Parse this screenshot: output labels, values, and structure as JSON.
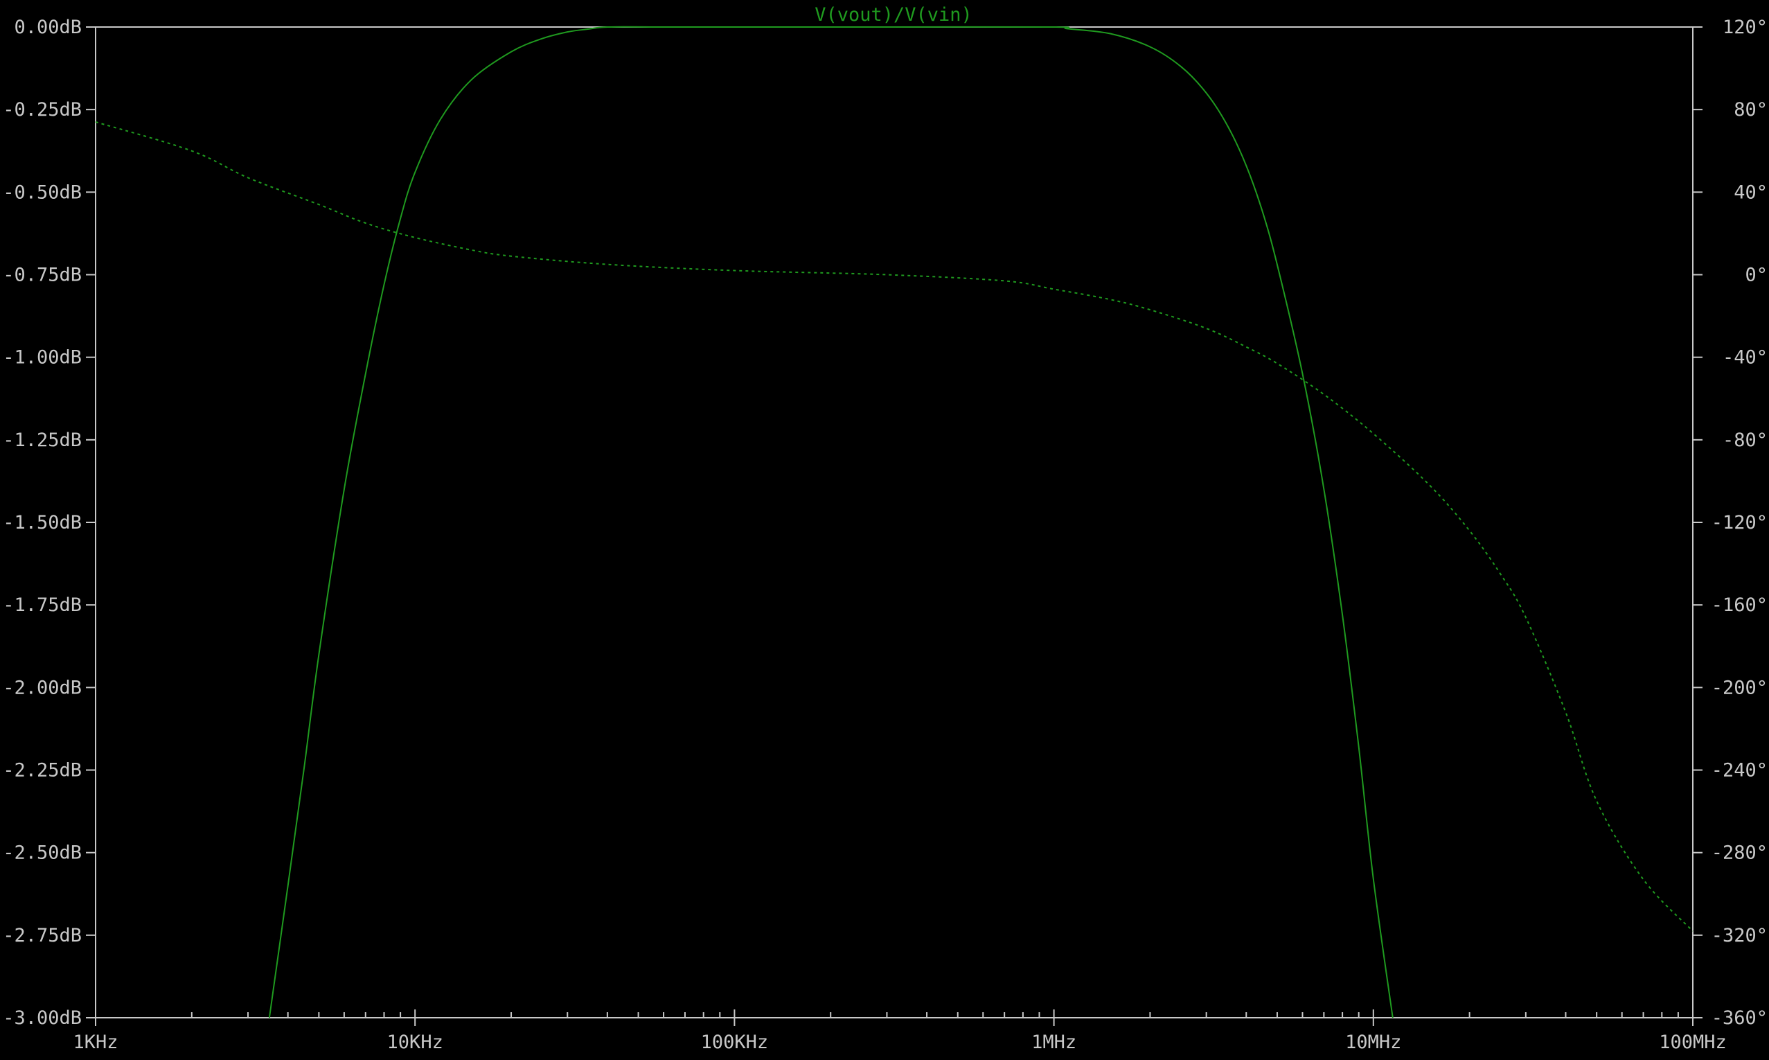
{
  "chart_data": {
    "type": "line",
    "title": "V(vout)/V(vin)",
    "x_scale": "log",
    "xlim": [
      1000,
      100000000
    ],
    "x_ticks": [
      {
        "value": 1000,
        "label": "1KHz"
      },
      {
        "value": 10000,
        "label": "10KHz"
      },
      {
        "value": 100000,
        "label": "100KHz"
      },
      {
        "value": 1000000,
        "label": "1MHz"
      },
      {
        "value": 10000000,
        "label": "10MHz"
      },
      {
        "value": 100000000,
        "label": "100MHz"
      }
    ],
    "y_left": {
      "unit": "dB",
      "lim": [
        -3.0,
        0.0
      ],
      "ticks": [
        {
          "value": 0.0,
          "label": "0.00dB"
        },
        {
          "value": -0.25,
          "label": "-0.25dB"
        },
        {
          "value": -0.5,
          "label": "-0.50dB"
        },
        {
          "value": -0.75,
          "label": "-0.75dB"
        },
        {
          "value": -1.0,
          "label": "-1.00dB"
        },
        {
          "value": -1.25,
          "label": "-1.25dB"
        },
        {
          "value": -1.5,
          "label": "-1.50dB"
        },
        {
          "value": -1.75,
          "label": "-1.75dB"
        },
        {
          "value": -2.0,
          "label": "-2.00dB"
        },
        {
          "value": -2.25,
          "label": "-2.25dB"
        },
        {
          "value": -2.5,
          "label": "-2.50dB"
        },
        {
          "value": -2.75,
          "label": "-2.75dB"
        },
        {
          "value": -3.0,
          "label": "-3.00dB"
        }
      ]
    },
    "y_right": {
      "unit": "°",
      "lim": [
        -360,
        120
      ],
      "ticks": [
        {
          "value": 120,
          "label": "120°"
        },
        {
          "value": 80,
          "label": "80°"
        },
        {
          "value": 40,
          "label": "40°"
        },
        {
          "value": 0,
          "label": "0°"
        },
        {
          "value": -40,
          "label": "-40°"
        },
        {
          "value": -80,
          "label": "-80°"
        },
        {
          "value": -120,
          "label": "-120°"
        },
        {
          "value": -160,
          "label": "-160°"
        },
        {
          "value": -200,
          "label": "-200°"
        },
        {
          "value": -240,
          "label": "-240°"
        },
        {
          "value": -280,
          "label": "-280°"
        },
        {
          "value": -320,
          "label": "-320°"
        },
        {
          "value": -360,
          "label": "-360°"
        }
      ]
    },
    "grid": false,
    "colors": {
      "trace": "#1f9a1f",
      "axis": "#c8c8c8",
      "background": "#000000"
    },
    "series": [
      {
        "axis": "left",
        "line_style": "solid",
        "x": [
          3500,
          4000,
          4500,
          5000,
          6000,
          7000,
          8000,
          9000,
          10000,
          12000,
          15000,
          20000,
          25000,
          30000,
          35000,
          40000,
          60000,
          100000,
          300000,
          1000000,
          1100000,
          1500000,
          2000000,
          2500000,
          3000000,
          3500000,
          4000000,
          4500000,
          5000000,
          6000000,
          7000000,
          8000000,
          9000000,
          10000000,
          11500000
        ],
        "y": [
          -3.0,
          -2.6,
          -2.24,
          -1.9,
          -1.4,
          -1.05,
          -0.78,
          -0.58,
          -0.44,
          -0.28,
          -0.16,
          -0.075,
          -0.035,
          -0.015,
          -0.006,
          0.0,
          0.0,
          0.0,
          0.0,
          0.0,
          -0.005,
          -0.02,
          -0.06,
          -0.12,
          -0.2,
          -0.3,
          -0.42,
          -0.56,
          -0.72,
          -1.05,
          -1.4,
          -1.78,
          -2.18,
          -2.58,
          -3.0
        ]
      },
      {
        "axis": "right",
        "line_style": "dotted",
        "x": [
          1000,
          2000,
          3000,
          5000,
          7000,
          10000,
          15000,
          20000,
          40000,
          100000,
          300000,
          700000,
          1000000,
          1500000,
          2000000,
          3000000,
          4000000,
          5000000,
          7000000,
          10000000,
          15000000,
          20000000,
          25000000,
          30000000,
          40000000,
          50000000,
          70000000,
          100000000
        ],
        "y": [
          74,
          60,
          47,
          34,
          25,
          18,
          12,
          9,
          5,
          2,
          0,
          -3,
          -7,
          -12,
          -17,
          -26,
          -35,
          -43,
          -58,
          -77,
          -102,
          -124,
          -145,
          -166,
          -212,
          -255,
          -293,
          -318
        ]
      }
    ]
  }
}
